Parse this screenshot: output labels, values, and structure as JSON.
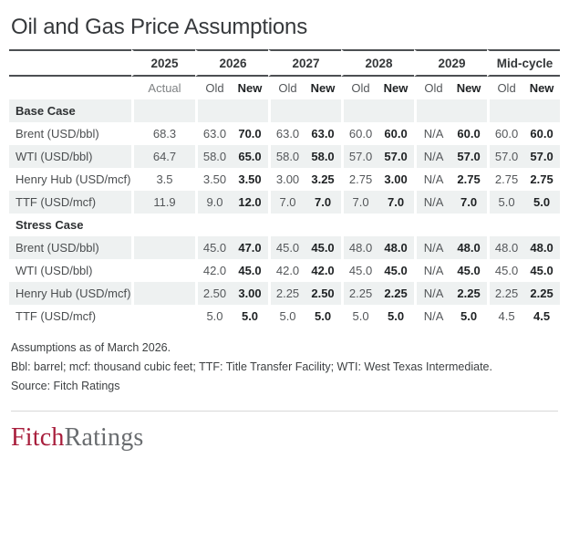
{
  "title": "Oil and Gas Price Assumptions",
  "chart_data": {
    "type": "table",
    "title": "Oil and Gas Price Assumptions",
    "groups": [
      {
        "year": "2025",
        "subs": [
          "Actual"
        ]
      },
      {
        "year": "2026",
        "subs": [
          "Old",
          "New"
        ]
      },
      {
        "year": "2027",
        "subs": [
          "Old",
          "New"
        ]
      },
      {
        "year": "2028",
        "subs": [
          "Old",
          "New"
        ]
      },
      {
        "year": "2029",
        "subs": [
          "Old",
          "New"
        ]
      },
      {
        "year": "Mid-cycle",
        "subs": [
          "Old",
          "New"
        ]
      }
    ],
    "sections": [
      {
        "name": "Base Case",
        "rows": [
          {
            "label": "Brent (USD/bbl)",
            "values": [
              "68.3",
              "63.0",
              "70.0",
              "63.0",
              "63.0",
              "60.0",
              "60.0",
              "N/A",
              "60.0",
              "60.0",
              "60.0"
            ]
          },
          {
            "label": "WTI (USD/bbl)",
            "values": [
              "64.7",
              "58.0",
              "65.0",
              "58.0",
              "58.0",
              "57.0",
              "57.0",
              "N/A",
              "57.0",
              "57.0",
              "57.0"
            ]
          },
          {
            "label": "Henry Hub (USD/mcf)",
            "values": [
              "3.5",
              "3.50",
              "3.50",
              "3.00",
              "3.25",
              "2.75",
              "3.00",
              "N/A",
              "2.75",
              "2.75",
              "2.75"
            ]
          },
          {
            "label": "TTF (USD/mcf)",
            "values": [
              "11.9",
              "9.0",
              "12.0",
              "7.0",
              "7.0",
              "7.0",
              "7.0",
              "N/A",
              "7.0",
              "5.0",
              "5.0"
            ]
          }
        ]
      },
      {
        "name": "Stress Case",
        "rows": [
          {
            "label": "Brent (USD/bbl)",
            "values": [
              "",
              "45.0",
              "47.0",
              "45.0",
              "45.0",
              "48.0",
              "48.0",
              "N/A",
              "48.0",
              "48.0",
              "48.0"
            ]
          },
          {
            "label": "WTI (USD/bbl)",
            "values": [
              "",
              "42.0",
              "45.0",
              "42.0",
              "42.0",
              "45.0",
              "45.0",
              "N/A",
              "45.0",
              "45.0",
              "45.0"
            ]
          },
          {
            "label": "Henry Hub (USD/mcf)",
            "values": [
              "",
              "2.50",
              "3.00",
              "2.25",
              "2.50",
              "2.25",
              "2.25",
              "N/A",
              "2.25",
              "2.25",
              "2.25"
            ]
          },
          {
            "label": "TTF (USD/mcf)",
            "values": [
              "",
              "5.0",
              "5.0",
              "5.0",
              "5.0",
              "5.0",
              "5.0",
              "N/A",
              "5.0",
              "4.5",
              "4.5"
            ]
          }
        ]
      }
    ]
  },
  "footnotes": [
    "Assumptions as of March 2026.",
    "Bbl: barrel; mcf: thousand cubic feet; TTF: Title Transfer Facility; WTI: West Texas Intermediate.",
    "Source: Fitch Ratings"
  ],
  "logo": {
    "fitch": "Fitch",
    "ratings": "Ratings"
  },
  "colors": {
    "stripe": "#eef1f1",
    "header_rule": "#4c4f52",
    "new_value_text": "#1f2224",
    "old_value_text": "#54575a",
    "title_text": "#36393c",
    "logo_fitch_red": "#a81e3c",
    "logo_ratings_gray": "#696c6f",
    "divider": "#d8d8d8"
  }
}
